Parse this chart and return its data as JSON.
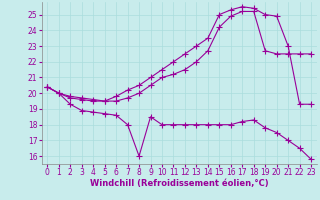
{
  "background_color": "#c8ecec",
  "grid_color": "#aadddd",
  "line_color": "#990099",
  "marker": "+",
  "markersize": 4,
  "linewidth": 0.8,
  "markeredgewidth": 0.8,
  "xlim": [
    -0.5,
    23.5
  ],
  "ylim": [
    15.5,
    25.8
  ],
  "yticks": [
    16,
    17,
    18,
    19,
    20,
    21,
    22,
    23,
    24,
    25
  ],
  "xticks": [
    0,
    1,
    2,
    3,
    4,
    5,
    6,
    7,
    8,
    9,
    10,
    11,
    12,
    13,
    14,
    15,
    16,
    17,
    18,
    19,
    20,
    21,
    22,
    23
  ],
  "xlabel": "Windchill (Refroidissement éolien,°C)",
  "xlabel_fontsize": 6,
  "tick_fontsize": 5.5,
  "series": [
    {
      "x": [
        0,
        1,
        2,
        3,
        4,
        5,
        6,
        7,
        8,
        9,
        10,
        11,
        12,
        13,
        14,
        15,
        16,
        17,
        18,
        19,
        20,
        21,
        22,
        23
      ],
      "y": [
        20.4,
        20.0,
        19.8,
        19.7,
        19.6,
        19.5,
        19.8,
        20.2,
        20.5,
        21.0,
        21.5,
        22.0,
        22.5,
        23.0,
        23.5,
        25.0,
        25.3,
        25.5,
        25.4,
        25.0,
        24.9,
        23.0,
        19.3,
        19.3
      ]
    },
    {
      "x": [
        0,
        1,
        2,
        3,
        4,
        5,
        6,
        7,
        8,
        9,
        10,
        11,
        12,
        13,
        14,
        15,
        16,
        17,
        18,
        19,
        20,
        21,
        22,
        23
      ],
      "y": [
        20.4,
        20.0,
        19.7,
        19.6,
        19.5,
        19.5,
        19.5,
        19.7,
        20.0,
        20.5,
        21.0,
        21.2,
        21.5,
        22.0,
        22.7,
        24.2,
        24.9,
        25.2,
        25.2,
        22.7,
        22.5,
        22.5,
        22.5,
        22.5
      ]
    },
    {
      "x": [
        0,
        1,
        2,
        3,
        4,
        5,
        6,
        7,
        8,
        9,
        10,
        11,
        12,
        13,
        14,
        15,
        16,
        17,
        18,
        19,
        20,
        21,
        22,
        23
      ],
      "y": [
        20.4,
        20.0,
        19.3,
        18.9,
        18.8,
        18.7,
        18.6,
        18.0,
        16.0,
        18.5,
        18.0,
        18.0,
        18.0,
        18.0,
        18.0,
        18.0,
        18.0,
        18.2,
        18.3,
        17.8,
        17.5,
        17.0,
        16.5,
        15.8
      ]
    }
  ]
}
